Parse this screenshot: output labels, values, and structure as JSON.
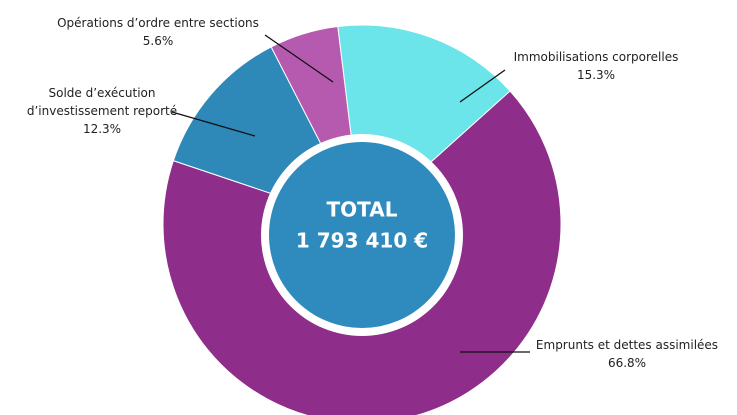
{
  "chart_data": {
    "type": "donut",
    "categories": [
      "Immobilisations corporelles",
      "Emprunts et dettes assimilées",
      "Solde d’exécution d’investissement reporté",
      "Opérations d’ordre entre sections"
    ],
    "values": [
      15.3,
      66.8,
      12.3,
      5.6
    ],
    "value_labels": [
      "15.3%",
      "66.8%",
      "12.3%",
      "5.6%"
    ],
    "colors": [
      "#6be4ea",
      "#8e2d8a",
      "#2e88b8",
      "#b65ab0"
    ],
    "center_text": [
      "TOTAL",
      "1 793 410 €"
    ],
    "center_color": "#2f8bbd"
  }
}
